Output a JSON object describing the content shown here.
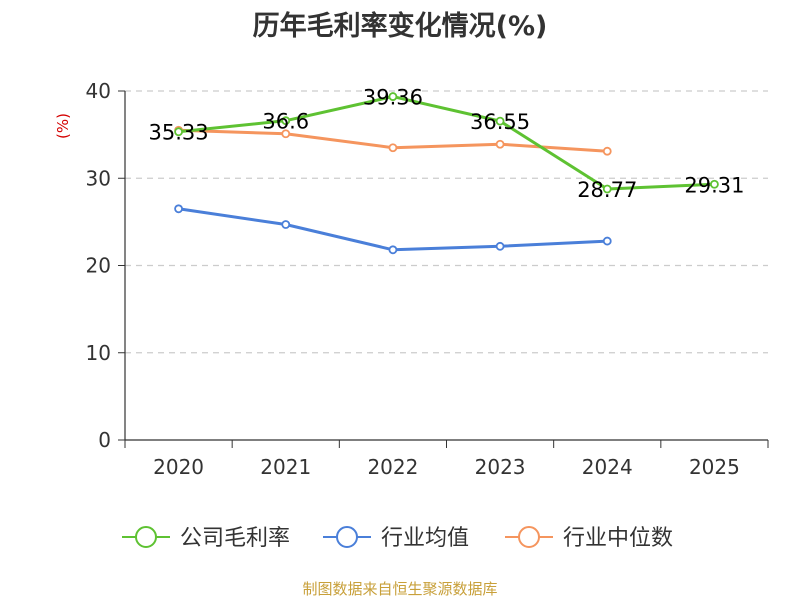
{
  "chart_data": {
    "type": "line",
    "title": "历年毛利率变化情况(%)",
    "ylabel": "(%)",
    "xlabel": "",
    "categories": [
      "2020",
      "2021",
      "2022",
      "2023",
      "2024",
      "2025"
    ],
    "ylim": [
      0,
      40
    ],
    "yticks": [
      0,
      10,
      20,
      30,
      40
    ],
    "grid": true,
    "legend_position": "bottom",
    "series": [
      {
        "name": "公司毛利率",
        "color": "#5ec232",
        "values": [
          35.33,
          36.6,
          39.36,
          36.55,
          28.77,
          29.31
        ],
        "labels": [
          "35.33",
          "36.6",
          "39.36",
          "36.55",
          "28.77",
          "29.31"
        ]
      },
      {
        "name": "行业均值",
        "color": "#4a7fd9",
        "values": [
          26.5,
          24.7,
          21.8,
          22.2,
          22.8,
          null
        ]
      },
      {
        "name": "行业中位数",
        "color": "#f5955e",
        "values": [
          35.5,
          35.1,
          33.5,
          33.9,
          33.1,
          null
        ]
      }
    ]
  },
  "footer": {
    "source": "制图数据来自恒生聚源数据库"
  }
}
